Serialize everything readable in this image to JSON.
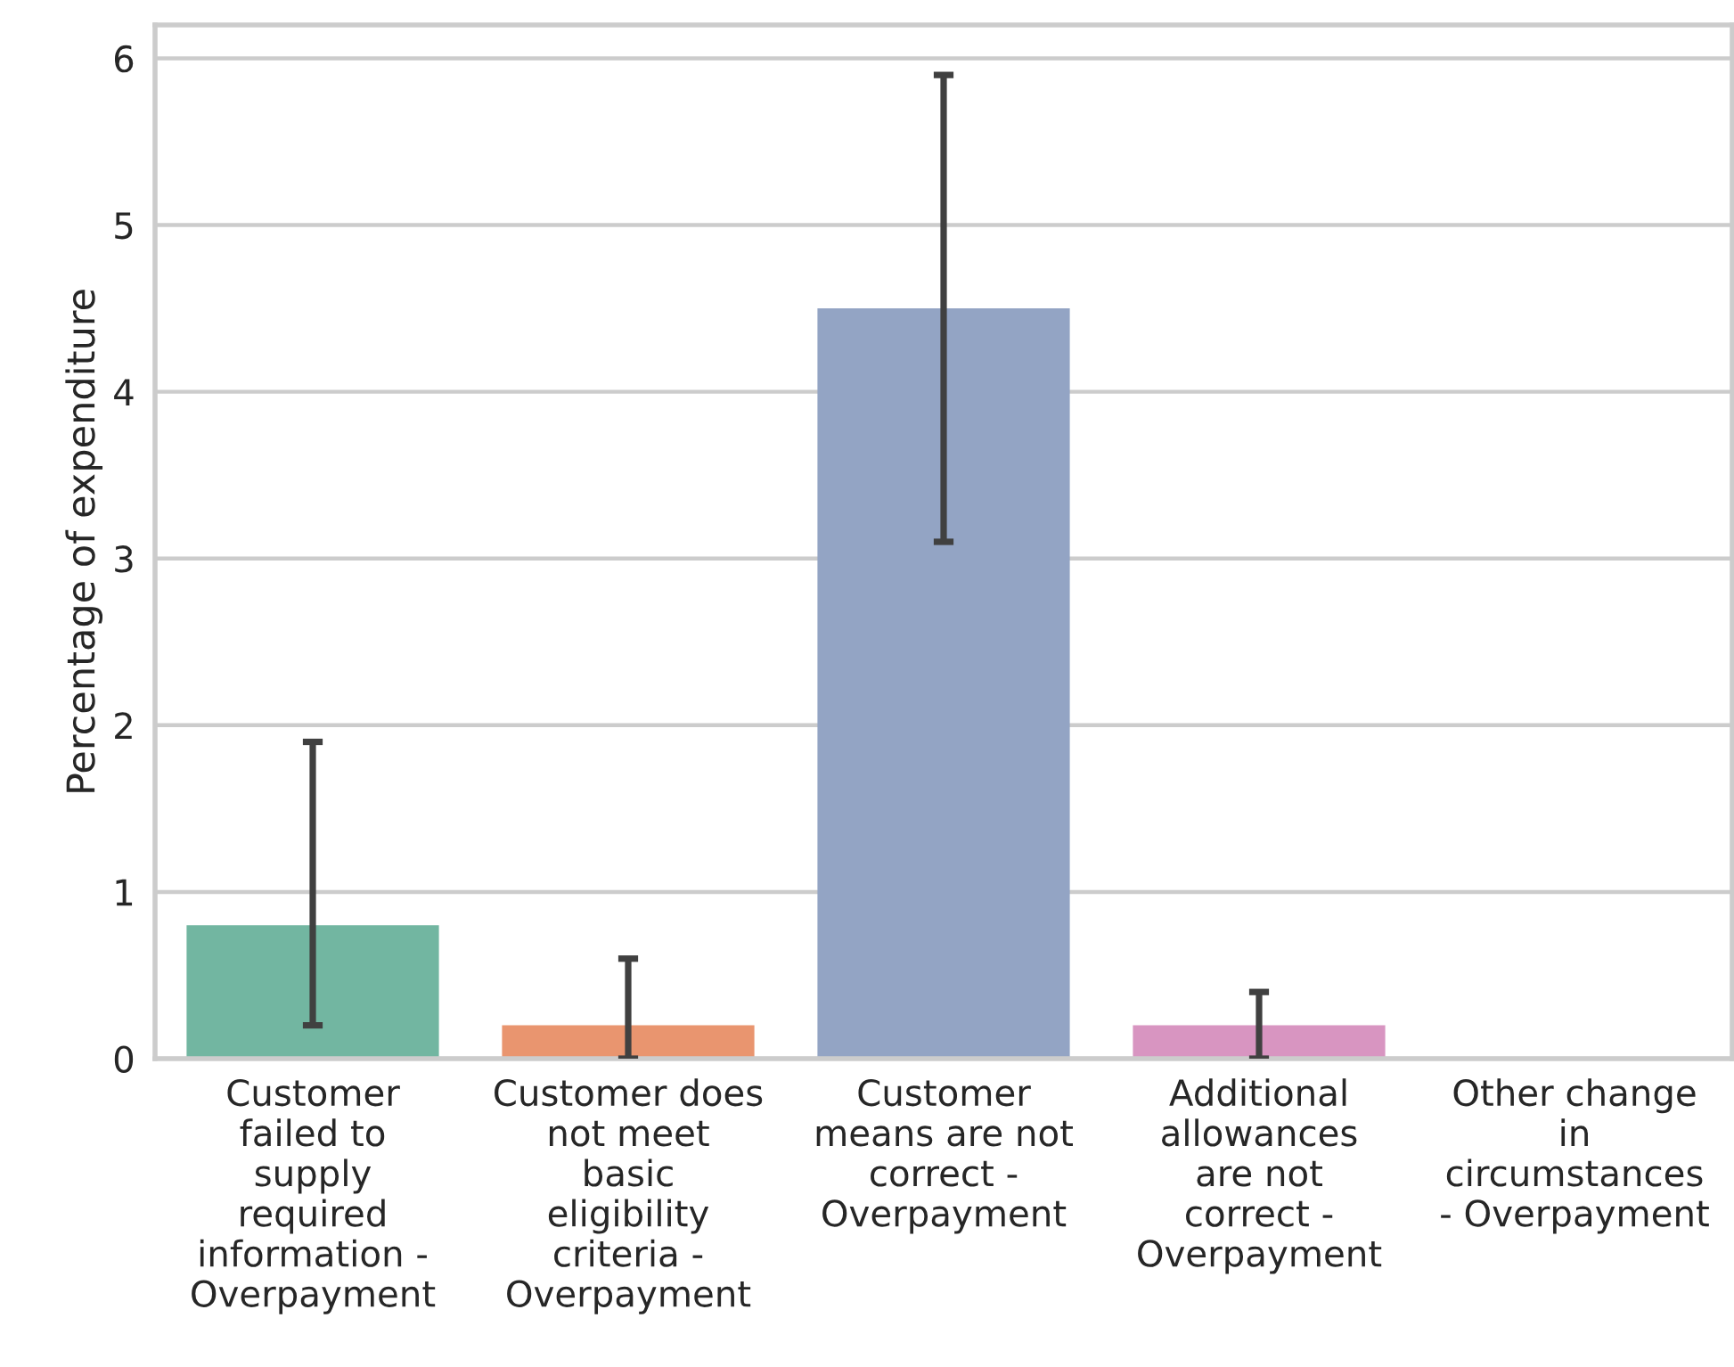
{
  "chart_data": {
    "type": "bar",
    "categories": [
      "Customer\nfailed to\nsupply\nrequired\ninformation -\nOverpayment",
      "Customer does\nnot meet\nbasic\neligibility\ncriteria -\nOverpayment",
      "Customer\nmeans are not\ncorrect -\nOverpayment",
      "Additional\nallowances\nare not\ncorrect -\nOverpayment",
      "Other change\nin\ncircumstances\n- Overpayment"
    ],
    "values": [
      0.8,
      0.2,
      4.5,
      0.2,
      0
    ],
    "colors": [
      "#72b6a1",
      "#e9956f",
      "#93a4c4",
      "#d895c1",
      "#a6cf6f"
    ],
    "errors": [
      [
        0.2,
        1.9
      ],
      [
        0.0,
        0.6
      ],
      [
        3.1,
        5.9
      ],
      [
        0.0,
        0.4
      ],
      null
    ],
    "ylabel": "Percentage of expenditure",
    "ylim": [
      0,
      6.2
    ],
    "yticks": [
      0,
      1,
      2,
      3,
      4,
      5,
      6
    ],
    "grid": "y"
  }
}
